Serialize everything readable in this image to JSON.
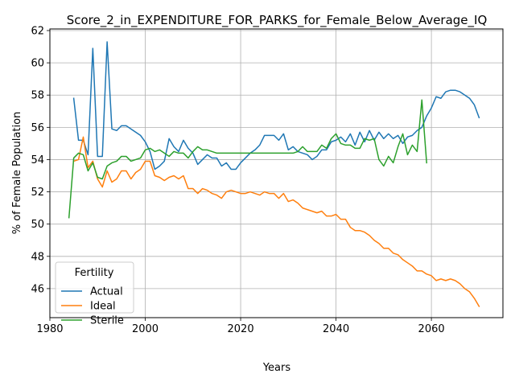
{
  "chart_data": {
    "type": "line",
    "title": "Score_2_in_EXPENDITURE_FOR_PARKS_for_Female_Below_Average_IQ",
    "xlabel": "Years",
    "ylabel": "% of Female Population",
    "xlim": [
      1980,
      2075
    ],
    "ylim": [
      44.2,
      62.1
    ],
    "xticks": [
      1980,
      2000,
      2020,
      2040,
      2060
    ],
    "yticks": [
      46,
      48,
      50,
      52,
      54,
      56,
      58,
      60,
      62
    ],
    "grid": true,
    "legend": {
      "title": "Fertility",
      "position": "bottom-left"
    },
    "series": [
      {
        "name": "Actual",
        "color": "#1f77b4",
        "x": [
          1985,
          1986,
          1987,
          1988,
          1989,
          1990,
          1991,
          1992,
          1993,
          1994,
          1995,
          1996,
          1997,
          1998,
          1999,
          2000,
          2001,
          2002,
          2003,
          2004,
          2005,
          2006,
          2007,
          2008,
          2009,
          2010,
          2011,
          2012,
          2013,
          2014,
          2015,
          2016,
          2017,
          2018,
          2019,
          2020,
          2021,
          2022,
          2023,
          2024,
          2025,
          2026,
          2027,
          2028,
          2029,
          2030,
          2031,
          2032,
          2033,
          2034,
          2035,
          2036,
          2037,
          2038,
          2039,
          2040,
          2041,
          2042,
          2043,
          2044,
          2045,
          2046,
          2047,
          2048,
          2049,
          2050,
          2051,
          2052,
          2053,
          2054,
          2055,
          2056,
          2057,
          2058,
          2059,
          2060,
          2061,
          2062,
          2063,
          2064,
          2065,
          2066,
          2067,
          2068,
          2069,
          2070
        ],
        "values": [
          57.8,
          55.2,
          55.2,
          54.3,
          60.9,
          54.2,
          54.2,
          61.3,
          55.9,
          55.8,
          56.1,
          56.1,
          55.9,
          55.7,
          55.5,
          55.1,
          54.5,
          53.4,
          53.6,
          53.9,
          55.3,
          54.8,
          54.5,
          55.2,
          54.7,
          54.4,
          53.7,
          54.0,
          54.3,
          54.1,
          54.1,
          53.6,
          53.8,
          53.4,
          53.4,
          53.8,
          54.1,
          54.4,
          54.6,
          54.9,
          55.5,
          55.5,
          55.5,
          55.2,
          55.6,
          54.6,
          54.8,
          54.5,
          54.4,
          54.3,
          54.0,
          54.2,
          54.6,
          54.6,
          55.1,
          55.2,
          55.4,
          55.1,
          55.6,
          54.9,
          55.7,
          55.1,
          55.8,
          55.2,
          55.7,
          55.3,
          55.6,
          55.3,
          55.5,
          55.0,
          55.4,
          55.5,
          55.8,
          56.0,
          56.7,
          57.2,
          57.9,
          57.8,
          58.2,
          58.3,
          58.3,
          58.2,
          58.0,
          57.8,
          57.4,
          56.6
        ]
      },
      {
        "name": "Ideal",
        "color": "#ff7f0e",
        "x": [
          1985,
          1986,
          1987,
          1988,
          1989,
          1990,
          1991,
          1992,
          1993,
          1994,
          1995,
          1996,
          1997,
          1998,
          1999,
          2000,
          2001,
          2002,
          2003,
          2004,
          2005,
          2006,
          2007,
          2008,
          2009,
          2010,
          2011,
          2012,
          2013,
          2014,
          2015,
          2016,
          2017,
          2018,
          2019,
          2020,
          2021,
          2022,
          2023,
          2024,
          2025,
          2026,
          2027,
          2028,
          2029,
          2030,
          2031,
          2032,
          2033,
          2034,
          2035,
          2036,
          2037,
          2038,
          2039,
          2040,
          2041,
          2042,
          2043,
          2044,
          2045,
          2046,
          2047,
          2048,
          2049,
          2050,
          2051,
          2052,
          2053,
          2054,
          2055,
          2056,
          2057,
          2058,
          2059,
          2060,
          2061,
          2062,
          2063,
          2064,
          2065,
          2066,
          2067,
          2068,
          2069,
          2070
        ],
        "values": [
          53.9,
          54.0,
          55.4,
          53.5,
          53.9,
          52.8,
          52.3,
          53.3,
          52.6,
          52.8,
          53.3,
          53.3,
          52.8,
          53.2,
          53.4,
          53.9,
          53.9,
          53.0,
          52.9,
          52.7,
          52.9,
          53.0,
          52.8,
          53.0,
          52.2,
          52.2,
          51.9,
          52.2,
          52.1,
          51.9,
          51.8,
          51.6,
          52.0,
          52.1,
          52.0,
          51.9,
          51.9,
          52.0,
          51.9,
          51.8,
          52.0,
          51.9,
          51.9,
          51.6,
          51.9,
          51.4,
          51.5,
          51.3,
          51.0,
          50.9,
          50.8,
          50.7,
          50.8,
          50.5,
          50.5,
          50.6,
          50.3,
          50.3,
          49.8,
          49.6,
          49.6,
          49.5,
          49.3,
          49.0,
          48.8,
          48.5,
          48.5,
          48.2,
          48.1,
          47.8,
          47.6,
          47.4,
          47.1,
          47.1,
          46.9,
          46.8,
          46.5,
          46.6,
          46.5,
          46.6,
          46.5,
          46.3,
          46.0,
          45.8,
          45.4,
          44.9
        ]
      },
      {
        "name": "Sterile",
        "color": "#2ca02c",
        "x": [
          1984,
          1985,
          1986,
          1987,
          1988,
          1989,
          1990,
          1991,
          1992,
          1993,
          1994,
          1995,
          1996,
          1997,
          1998,
          1999,
          2000,
          2001,
          2002,
          2003,
          2004,
          2005,
          2006,
          2007,
          2008,
          2009,
          2010,
          2011,
          2012,
          2013,
          2014,
          2015,
          2016,
          2017,
          2018,
          2019,
          2020,
          2021,
          2022,
          2023,
          2024,
          2025,
          2026,
          2027,
          2028,
          2029,
          2030,
          2031,
          2032,
          2033,
          2034,
          2035,
          2036,
          2037,
          2038,
          2039,
          2040,
          2041,
          2042,
          2043,
          2044,
          2045,
          2046,
          2047,
          2048,
          2049,
          2050,
          2051,
          2052,
          2053,
          2054,
          2055,
          2056,
          2057,
          2058,
          2059
        ],
        "values": [
          50.4,
          54.1,
          54.4,
          54.3,
          53.3,
          53.8,
          52.9,
          52.8,
          53.6,
          53.8,
          53.9,
          54.2,
          54.2,
          53.9,
          54.0,
          54.1,
          54.6,
          54.7,
          54.5,
          54.6,
          54.4,
          54.2,
          54.5,
          54.4,
          54.4,
          54.1,
          54.5,
          54.8,
          54.6,
          54.6,
          54.5,
          54.4,
          54.4,
          54.4,
          54.4,
          54.4,
          54.4,
          54.4,
          54.4,
          54.4,
          54.4,
          54.4,
          54.4,
          54.4,
          54.4,
          54.4,
          54.4,
          54.4,
          54.5,
          54.8,
          54.5,
          54.5,
          54.5,
          54.9,
          54.7,
          55.3,
          55.6,
          55.0,
          54.9,
          54.9,
          54.7,
          54.7,
          55.3,
          55.2,
          55.3,
          54.0,
          53.6,
          54.2,
          53.8,
          54.8,
          55.6,
          54.3,
          54.9,
          54.5,
          57.7,
          53.8
        ]
      }
    ]
  }
}
